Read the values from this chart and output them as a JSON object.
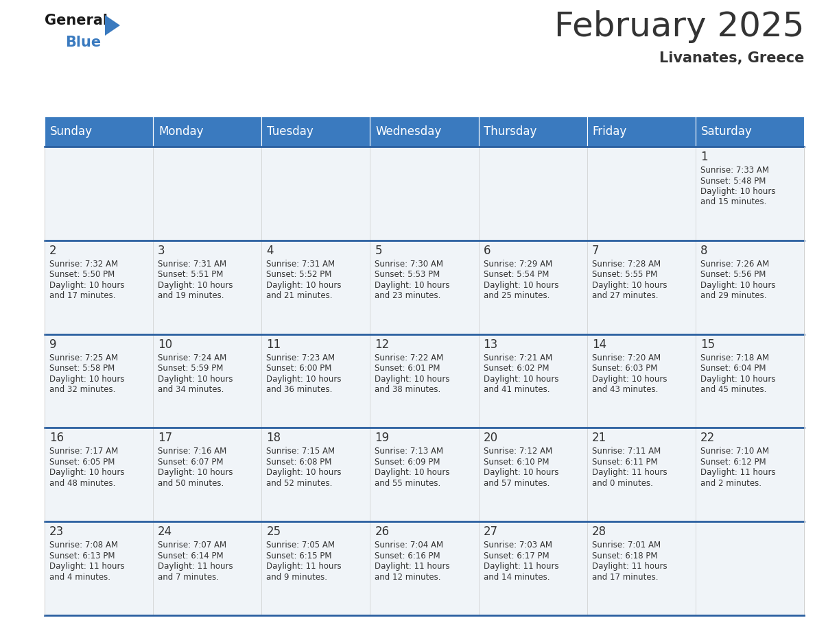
{
  "title": "February 2025",
  "subtitle": "Livanates, Greece",
  "header_bg": "#3a7abf",
  "header_text_color": "#ffffff",
  "cell_bg": "#f0f4f8",
  "border_color": "#2a5fa0",
  "text_color": "#333333",
  "days_of_week": [
    "Sunday",
    "Monday",
    "Tuesday",
    "Wednesday",
    "Thursday",
    "Friday",
    "Saturday"
  ],
  "weeks": [
    [
      {
        "day": "",
        "info": ""
      },
      {
        "day": "",
        "info": ""
      },
      {
        "day": "",
        "info": ""
      },
      {
        "day": "",
        "info": ""
      },
      {
        "day": "",
        "info": ""
      },
      {
        "day": "",
        "info": ""
      },
      {
        "day": "1",
        "info": "Sunrise: 7:33 AM\nSunset: 5:48 PM\nDaylight: 10 hours\nand 15 minutes."
      }
    ],
    [
      {
        "day": "2",
        "info": "Sunrise: 7:32 AM\nSunset: 5:50 PM\nDaylight: 10 hours\nand 17 minutes."
      },
      {
        "day": "3",
        "info": "Sunrise: 7:31 AM\nSunset: 5:51 PM\nDaylight: 10 hours\nand 19 minutes."
      },
      {
        "day": "4",
        "info": "Sunrise: 7:31 AM\nSunset: 5:52 PM\nDaylight: 10 hours\nand 21 minutes."
      },
      {
        "day": "5",
        "info": "Sunrise: 7:30 AM\nSunset: 5:53 PM\nDaylight: 10 hours\nand 23 minutes."
      },
      {
        "day": "6",
        "info": "Sunrise: 7:29 AM\nSunset: 5:54 PM\nDaylight: 10 hours\nand 25 minutes."
      },
      {
        "day": "7",
        "info": "Sunrise: 7:28 AM\nSunset: 5:55 PM\nDaylight: 10 hours\nand 27 minutes."
      },
      {
        "day": "8",
        "info": "Sunrise: 7:26 AM\nSunset: 5:56 PM\nDaylight: 10 hours\nand 29 minutes."
      }
    ],
    [
      {
        "day": "9",
        "info": "Sunrise: 7:25 AM\nSunset: 5:58 PM\nDaylight: 10 hours\nand 32 minutes."
      },
      {
        "day": "10",
        "info": "Sunrise: 7:24 AM\nSunset: 5:59 PM\nDaylight: 10 hours\nand 34 minutes."
      },
      {
        "day": "11",
        "info": "Sunrise: 7:23 AM\nSunset: 6:00 PM\nDaylight: 10 hours\nand 36 minutes."
      },
      {
        "day": "12",
        "info": "Sunrise: 7:22 AM\nSunset: 6:01 PM\nDaylight: 10 hours\nand 38 minutes."
      },
      {
        "day": "13",
        "info": "Sunrise: 7:21 AM\nSunset: 6:02 PM\nDaylight: 10 hours\nand 41 minutes."
      },
      {
        "day": "14",
        "info": "Sunrise: 7:20 AM\nSunset: 6:03 PM\nDaylight: 10 hours\nand 43 minutes."
      },
      {
        "day": "15",
        "info": "Sunrise: 7:18 AM\nSunset: 6:04 PM\nDaylight: 10 hours\nand 45 minutes."
      }
    ],
    [
      {
        "day": "16",
        "info": "Sunrise: 7:17 AM\nSunset: 6:05 PM\nDaylight: 10 hours\nand 48 minutes."
      },
      {
        "day": "17",
        "info": "Sunrise: 7:16 AM\nSunset: 6:07 PM\nDaylight: 10 hours\nand 50 minutes."
      },
      {
        "day": "18",
        "info": "Sunrise: 7:15 AM\nSunset: 6:08 PM\nDaylight: 10 hours\nand 52 minutes."
      },
      {
        "day": "19",
        "info": "Sunrise: 7:13 AM\nSunset: 6:09 PM\nDaylight: 10 hours\nand 55 minutes."
      },
      {
        "day": "20",
        "info": "Sunrise: 7:12 AM\nSunset: 6:10 PM\nDaylight: 10 hours\nand 57 minutes."
      },
      {
        "day": "21",
        "info": "Sunrise: 7:11 AM\nSunset: 6:11 PM\nDaylight: 11 hours\nand 0 minutes."
      },
      {
        "day": "22",
        "info": "Sunrise: 7:10 AM\nSunset: 6:12 PM\nDaylight: 11 hours\nand 2 minutes."
      }
    ],
    [
      {
        "day": "23",
        "info": "Sunrise: 7:08 AM\nSunset: 6:13 PM\nDaylight: 11 hours\nand 4 minutes."
      },
      {
        "day": "24",
        "info": "Sunrise: 7:07 AM\nSunset: 6:14 PM\nDaylight: 11 hours\nand 7 minutes."
      },
      {
        "day": "25",
        "info": "Sunrise: 7:05 AM\nSunset: 6:15 PM\nDaylight: 11 hours\nand 9 minutes."
      },
      {
        "day": "26",
        "info": "Sunrise: 7:04 AM\nSunset: 6:16 PM\nDaylight: 11 hours\nand 12 minutes."
      },
      {
        "day": "27",
        "info": "Sunrise: 7:03 AM\nSunset: 6:17 PM\nDaylight: 11 hours\nand 14 minutes."
      },
      {
        "day": "28",
        "info": "Sunrise: 7:01 AM\nSunset: 6:18 PM\nDaylight: 11 hours\nand 17 minutes."
      },
      {
        "day": "",
        "info": ""
      }
    ]
  ],
  "logo_general_color": "#1a1a1a",
  "logo_blue_color": "#3a7abf",
  "logo_triangle_color": "#3a7abf"
}
